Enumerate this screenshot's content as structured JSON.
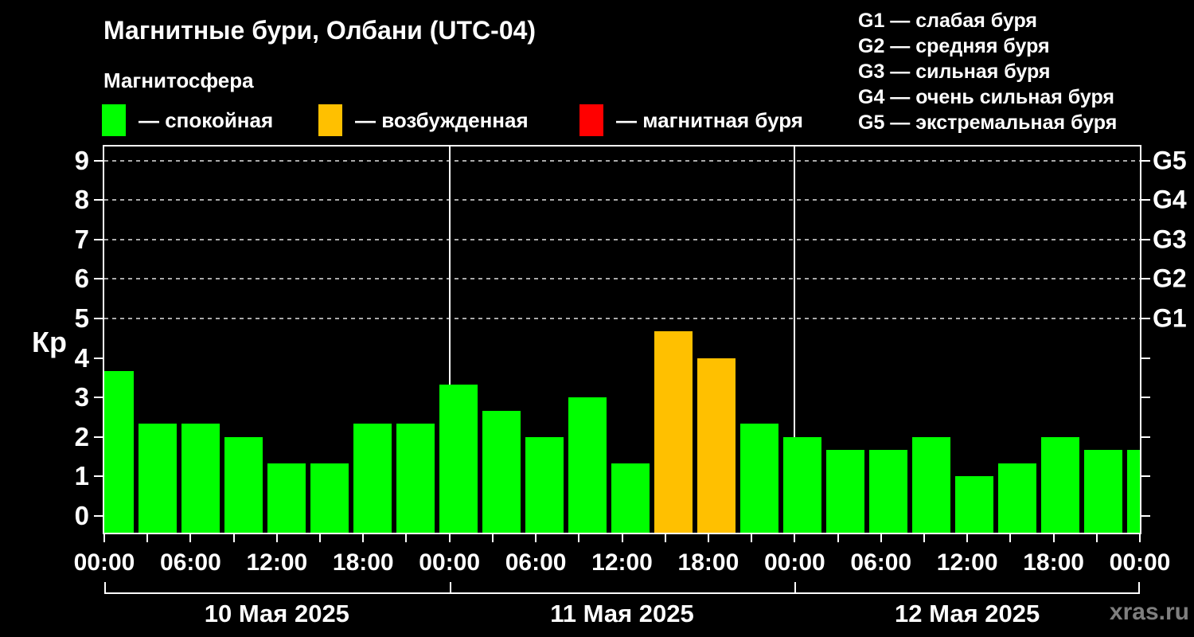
{
  "header": {
    "title": "Магнитные бури, Олбани (UTC-04)",
    "subtitle": "Магнитосфера"
  },
  "legend": {
    "items": [
      {
        "name": "quiet",
        "label": "— спокойная",
        "color": "#00ff00"
      },
      {
        "name": "excited",
        "label": "— возбужденная",
        "color": "#ffc000"
      },
      {
        "name": "storm",
        "label": "— магнитная буря",
        "color": "#ff0000"
      }
    ]
  },
  "g_scale": {
    "lines": [
      "G1 — слабая буря",
      "G2 — средняя буря",
      "G3 — сильная буря",
      "G4 — очень сильная буря",
      "G5 — экстремальная буря"
    ]
  },
  "watermark": "xras.ru",
  "chart_data": {
    "type": "bar",
    "title": "Магнитные бури, Олбани (UTC-04)",
    "subtitle": "Магнитосфера",
    "ylabel": "Кр",
    "ylim": [
      0,
      9
    ],
    "yticks": [
      0,
      1,
      2,
      3,
      4,
      5,
      6,
      7,
      8,
      9
    ],
    "grid": "dashed horizontal lines at Kp 5..9 only",
    "legend_position": "top",
    "bar_interval_hours": 3,
    "x_hour_labels": [
      "00:00",
      "06:00",
      "12:00",
      "18:00",
      "00:00",
      "06:00",
      "12:00",
      "18:00",
      "00:00",
      "06:00",
      "12:00",
      "18:00",
      "00:00"
    ],
    "dates": [
      "10 Мая 2025",
      "11 Мая 2025",
      "12 Мая 2025"
    ],
    "g_levels": [
      {
        "kp": 5,
        "code": "G1"
      },
      {
        "kp": 6,
        "code": "G2"
      },
      {
        "kp": 7,
        "code": "G3"
      },
      {
        "kp": 8,
        "code": "G4"
      },
      {
        "kp": 9,
        "code": "G5"
      }
    ],
    "state_colors": {
      "quiet": "#00ff00",
      "excited": "#ffc000",
      "storm": "#ff0000"
    },
    "series": [
      {
        "name": "Kp",
        "values": [
          3.67,
          2.33,
          2.33,
          2.0,
          1.33,
          1.33,
          2.33,
          2.33,
          3.33,
          2.67,
          2.0,
          3.0,
          1.33,
          4.67,
          4.0,
          2.33,
          2.0,
          1.67,
          1.67,
          2.0,
          1.0,
          1.33,
          2.0,
          1.67,
          1.67
        ],
        "states": [
          "quiet",
          "quiet",
          "quiet",
          "quiet",
          "quiet",
          "quiet",
          "quiet",
          "quiet",
          "quiet",
          "quiet",
          "quiet",
          "quiet",
          "quiet",
          "excited",
          "excited",
          "quiet",
          "quiet",
          "quiet",
          "quiet",
          "quiet",
          "quiet",
          "quiet",
          "quiet",
          "quiet",
          "quiet"
        ]
      }
    ]
  }
}
